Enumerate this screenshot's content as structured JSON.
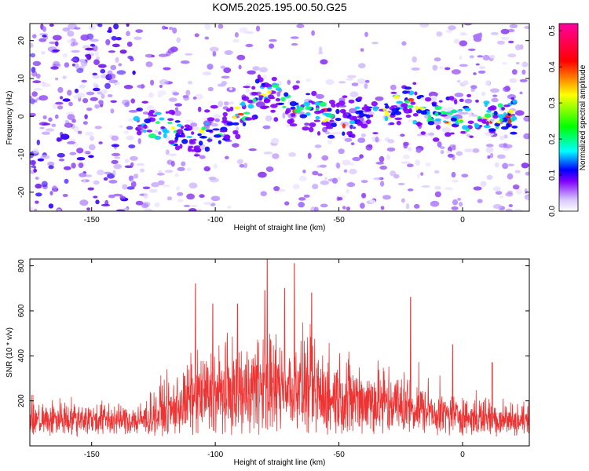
{
  "title": "KOM5.2025.195.00.50.G25",
  "chart_data": [
    {
      "type": "heatmap",
      "xlabel": "Height of straight line (km)",
      "ylabel": "Frequency (Hz)",
      "xlim": [
        -175,
        27
      ],
      "ylim": [
        -25,
        24.5
      ],
      "xticks": [
        -150,
        -100,
        -50,
        0
      ],
      "yticks": [
        -20,
        -10,
        0,
        10,
        20
      ],
      "colorbar": {
        "label": "Normalized spectral amplitude",
        "range": [
          0,
          0.52
        ],
        "ticks": [
          "0.0",
          "0.1",
          "0.2",
          "0.3",
          "0.4",
          "0.5"
        ],
        "tick_values": [
          0,
          0.1,
          0.2,
          0.3,
          0.4,
          0.5
        ],
        "colors": [
          "#ffffff",
          "#8000ff",
          "#0000ff",
          "#00ffff",
          "#00ff00",
          "#ffff00",
          "#ff0000",
          "#ff00a0"
        ]
      },
      "ridge": {
        "x": [
          -130,
          -120,
          -110,
          -100,
          -90,
          -80,
          -70,
          -60,
          -50,
          -40,
          -30,
          -20,
          -10,
          0,
          10,
          20
        ],
        "y": [
          -2,
          -2.5,
          -6,
          -3,
          0,
          7,
          3,
          1,
          -1.5,
          0.5,
          2,
          3,
          0,
          -1,
          0,
          0
        ]
      }
    },
    {
      "type": "line",
      "xlabel": "Height of straight line (km)",
      "ylabel": "SNR (10 * v/v)",
      "xlim": [
        -175,
        27
      ],
      "ylim": [
        0,
        830
      ],
      "xticks": [
        -150,
        -100,
        -50,
        0
      ],
      "yticks": [
        200,
        400,
        600,
        800
      ],
      "series": [
        {
          "color": "#ee3333",
          "envelope_x": [
            -175,
            -160,
            -140,
            -130,
            -120,
            -110,
            -100,
            -90,
            -80,
            -70,
            -60,
            -50,
            -40,
            -30,
            -20,
            -10,
            0,
            10,
            27
          ],
          "envelope_y": [
            130,
            140,
            130,
            130,
            190,
            260,
            300,
            310,
            330,
            330,
            310,
            280,
            260,
            240,
            210,
            170,
            150,
            150,
            120
          ],
          "peaks_x": [
            -108,
            -101,
            -91,
            -80,
            -79,
            -72,
            -68,
            -61,
            -21,
            -4,
            12
          ],
          "peaks_y": [
            720,
            630,
            630,
            690,
            830,
            700,
            810,
            680,
            660,
            450,
            370
          ]
        }
      ]
    }
  ]
}
